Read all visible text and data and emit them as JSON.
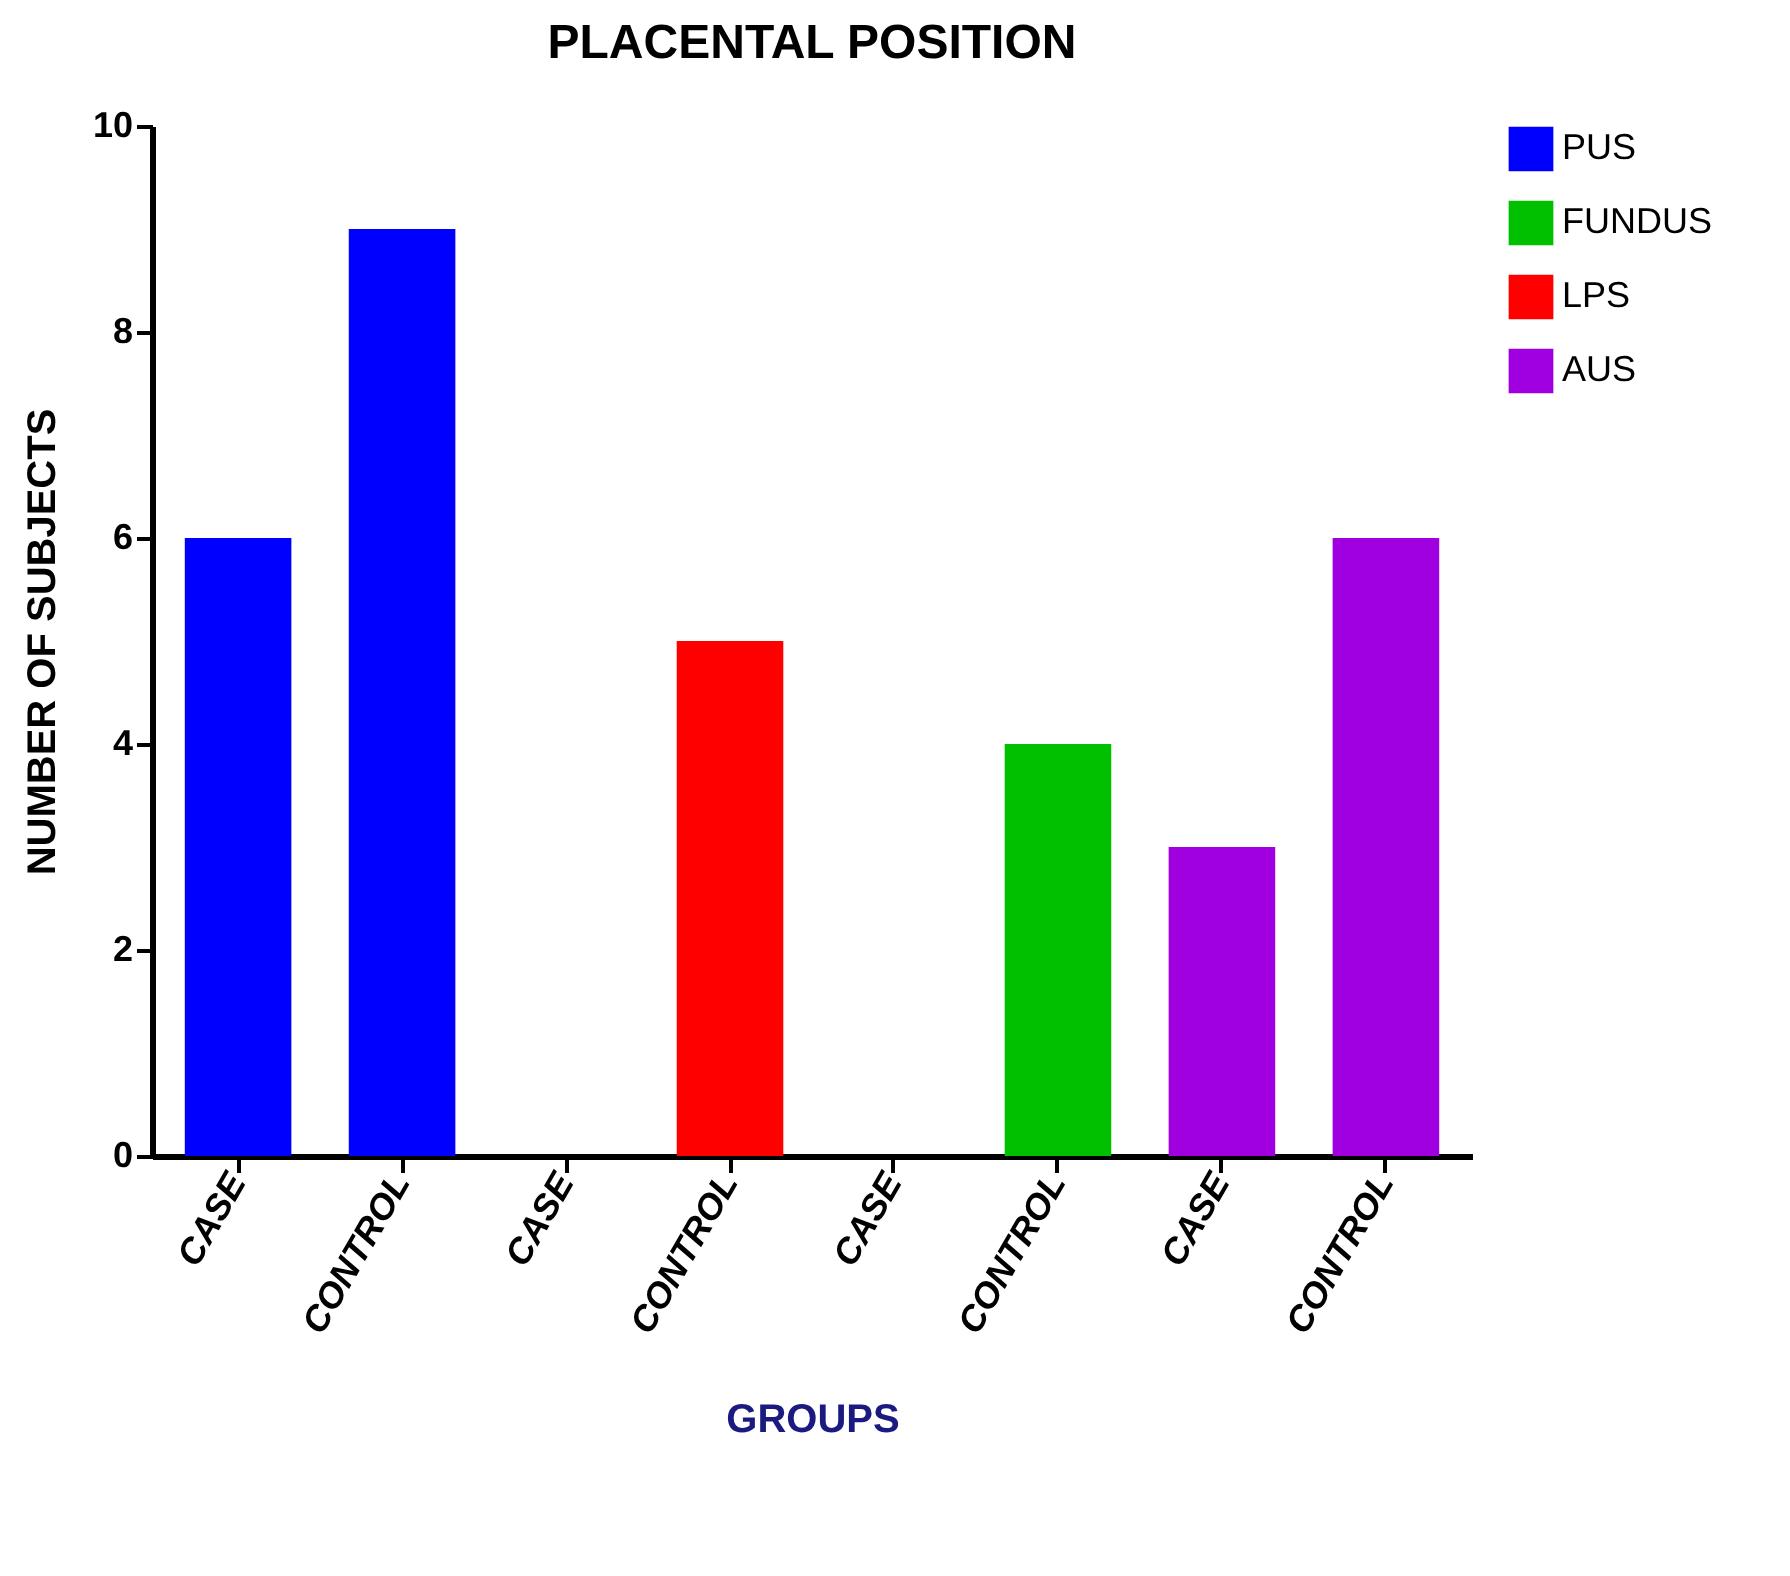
{
  "chart_data": {
    "type": "bar",
    "title": "PLACENTAL POSITION",
    "xlabel": "GROUPS",
    "ylabel": "NUMBER OF SUBJECTS",
    "categories": [
      "CASE",
      "CONTROL",
      "CASE",
      "CONTROL",
      "CASE",
      "CONTROL",
      "CASE",
      "CONTROL"
    ],
    "series": [
      {
        "name": "PUS",
        "color": "#0000ff",
        "values": [
          6,
          9,
          null,
          null,
          null,
          null,
          null,
          null
        ]
      },
      {
        "name": "FUNDUS",
        "color": "#00c000",
        "values": [
          null,
          null,
          null,
          null,
          0,
          4,
          null,
          null
        ]
      },
      {
        "name": "LPS",
        "color": "#ff0000",
        "values": [
          null,
          null,
          0,
          5,
          null,
          null,
          null,
          null
        ]
      },
      {
        "name": "AUS",
        "color": "#a000e0",
        "values": [
          null,
          null,
          null,
          null,
          null,
          null,
          3,
          6
        ]
      }
    ],
    "ylim": [
      0,
      10
    ],
    "yticks": [
      0,
      2,
      4,
      6,
      8,
      10
    ],
    "grid": false,
    "legend": "top right"
  }
}
